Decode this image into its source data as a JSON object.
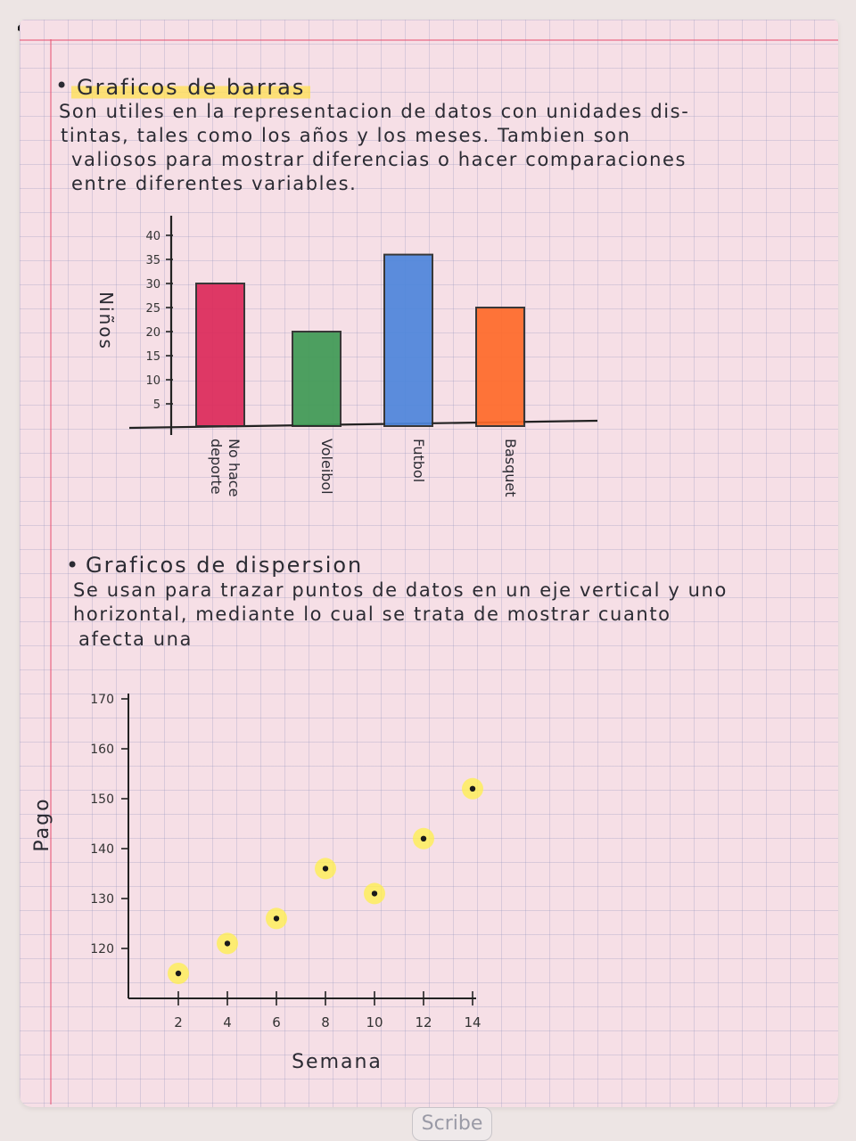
{
  "sections": [
    {
      "heading": "Graficos de barras",
      "lines": [
        "Son utiles en la representacion de datos con unidades dis-",
        "tintas, tales como los años y los meses. Tambien son",
        "valiosos para mostrar diferencias o hacer comparaciones",
        "entre diferentes variables."
      ]
    },
    {
      "heading": "Graficos de dispersion",
      "lines": [
        "Se usan para trazar puntos de datos en un eje vertical y uno",
        "horizontal, mediante lo cual se trata de mostrar cuanto",
        "afecta una"
      ]
    }
  ],
  "chart_data": [
    {
      "type": "bar",
      "categories": [
        "No hace deporte",
        "Voleibol",
        "Futbol",
        "Basquet"
      ],
      "values": [
        30,
        20,
        36,
        25
      ],
      "colors": [
        "#dc2a5b",
        "#3f9a55",
        "#4e86dc",
        "#ff6a2a"
      ],
      "ylabel": "Niños",
      "yticks": [
        5,
        10,
        15,
        20,
        25,
        30,
        35,
        40
      ],
      "ylim": [
        0,
        40
      ]
    },
    {
      "type": "scatter",
      "x": [
        2,
        4,
        6,
        8,
        10,
        12,
        14
      ],
      "y": [
        115,
        121,
        126,
        136,
        131,
        142,
        152
      ],
      "xlabel": "Semana",
      "ylabel": "Pago",
      "xticks": [
        2,
        4,
        6,
        8,
        10,
        12,
        14
      ],
      "yticks": [
        120,
        130,
        140,
        150,
        160,
        170
      ],
      "ylim": [
        110,
        170
      ],
      "point_highlight_color": "#fff04a"
    }
  ],
  "watermark": "Scribe"
}
